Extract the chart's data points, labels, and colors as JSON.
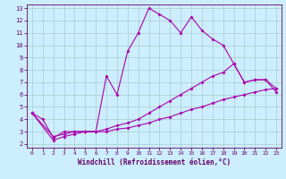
{
  "xlabel": "Windchill (Refroidissement éolien,°C)",
  "background_color": "#cceeff",
  "line_color": "#aa00aa",
  "xlim": [
    -0.5,
    23.5
  ],
  "ylim": [
    1.7,
    13.3
  ],
  "xticks": [
    0,
    1,
    2,
    3,
    4,
    5,
    6,
    7,
    8,
    9,
    10,
    11,
    12,
    13,
    14,
    15,
    16,
    17,
    18,
    19,
    20,
    21,
    22,
    23
  ],
  "yticks": [
    2,
    3,
    4,
    5,
    6,
    7,
    8,
    9,
    10,
    11,
    12,
    13
  ],
  "line1_x": [
    0,
    1,
    2,
    3,
    4,
    5,
    6,
    7,
    8,
    9,
    10,
    11,
    12,
    13,
    14,
    15,
    16,
    17,
    18,
    19,
    20,
    21,
    22,
    23
  ],
  "line1_y": [
    4.5,
    4.0,
    2.5,
    3.0,
    3.0,
    3.0,
    3.0,
    7.5,
    6.0,
    9.5,
    11.0,
    13.0,
    12.5,
    12.0,
    11.0,
    12.3,
    11.2,
    10.5,
    10.0,
    8.5,
    7.0,
    7.2,
    7.2,
    6.2
  ],
  "line2_x": [
    0,
    2,
    3,
    4,
    5,
    6,
    7,
    8,
    9,
    10,
    11,
    12,
    13,
    14,
    15,
    16,
    17,
    18,
    19,
    20,
    21,
    22,
    23
  ],
  "line2_y": [
    4.5,
    2.6,
    2.8,
    3.0,
    3.0,
    3.0,
    3.2,
    3.5,
    3.7,
    4.0,
    4.5,
    5.0,
    5.5,
    6.0,
    6.5,
    7.0,
    7.5,
    7.8,
    8.5,
    7.0,
    7.2,
    7.2,
    6.5
  ],
  "line3_x": [
    0,
    2,
    3,
    4,
    5,
    6,
    7,
    8,
    9,
    10,
    11,
    12,
    13,
    14,
    15,
    16,
    17,
    18,
    19,
    20,
    21,
    22,
    23
  ],
  "line3_y": [
    4.5,
    2.3,
    2.6,
    2.8,
    3.0,
    3.0,
    3.0,
    3.2,
    3.3,
    3.5,
    3.7,
    4.0,
    4.2,
    4.5,
    4.8,
    5.0,
    5.3,
    5.6,
    5.8,
    6.0,
    6.2,
    6.4,
    6.5
  ]
}
